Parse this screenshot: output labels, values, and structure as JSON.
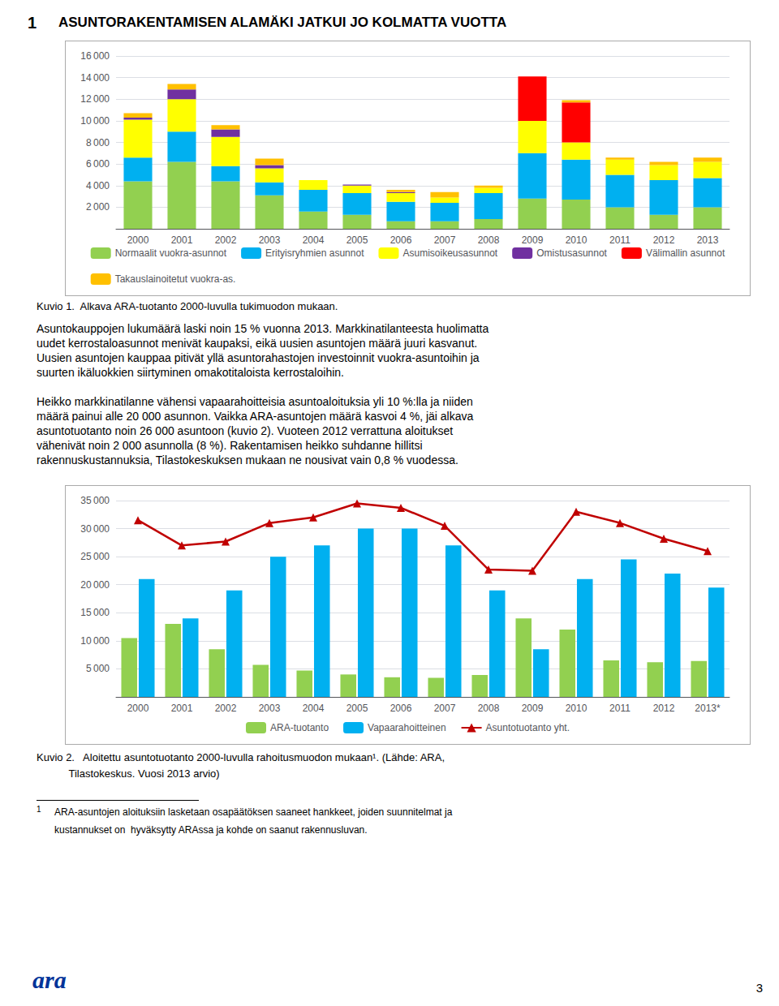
{
  "annotations": [
    "1",
    "ASUNTORAKENTAMISEN ALAMÄKI JATKUI JO KOLMATTA VUOTTA",
    "Kuvio 1.  Alkava ARA-tuotanto 2000-luvulla tukimuodon mukaan.",
    "Asuntokauppojen lukumäärä laski noin 15 % vuonna 2013. Markkinatilanteesta huolimatta",
    "uudet kerrostaloasunnot menivät kaupaksi, eikä uusien asuntojen määrä juuri kasvanut.",
    "Uusien asuntojen kauppaa pitivät yllä asuntorahastojen investoinnit vuokra-asuntoihin ja",
    "suurten ikäluokkien siirtyminen omakotitaloista kerrostaloihin.",
    "Heikko markkinatilanne vähensi vapaarahoitteisia asuntoaloituksia yli 10 %:lla ja niiden",
    "määrä painui alle 20 000 asunnon. Vaikka ARA-asuntojen määrä kasvoi 4 %, jäi alkava",
    "asuntotuotanto noin 26 000 asuntoon (kuvio 2). Vuoteen 2012 verrattuna aloitukset",
    "vähenivät noin 2 000 asunnolla (8 %). Rakentamisen heikko suhdanne hillitsi",
    "rakennuskustannuksia, Tilastokeskuksen mukaan ne nousivat vain 0,8 % vuodessa.",
    "Kuvio 2.   Aloitettu asuntotuotanto 2000-luvulla rahoitusmuodon mukaan¹. (Lähde: ARA,",
    "           Tilastokeskus. Vuosi 2013 arvio)",
    "1",
    "ARA-asuntojen aloituksiin lasketaan osapäätöksen saaneet hankkeet, joiden suunnitelmat ja",
    "kustannukset on  hyväksytty ARAssa ja kohde on saanut rakennusluvan.",
    "3",
    "ara"
  ],
  "chart_data": [
    {
      "type": "bar",
      "stacked": true,
      "categories": [
        "2000",
        "2001",
        "2002",
        "2003",
        "2004",
        "2005",
        "2006",
        "2007",
        "2008",
        "2009",
        "2010",
        "2011",
        "2012",
        "2013"
      ],
      "series": [
        {
          "name": "Normaalit vuokra-asunnot",
          "color": "#92D050",
          "values": [
            4400,
            6200,
            4400,
            3100,
            1600,
            1300,
            700,
            700,
            900,
            2800,
            2700,
            2000,
            1300,
            2000
          ]
        },
        {
          "name": "Erityisryhmien asunnot",
          "color": "#00B0F0",
          "values": [
            2200,
            2800,
            1400,
            1200,
            2000,
            2000,
            1800,
            1700,
            2400,
            4200,
            3700,
            3000,
            3200,
            2700
          ]
        },
        {
          "name": "Asumisoikeusasunnot",
          "color": "#FFFF00",
          "values": [
            3500,
            3000,
            2700,
            1300,
            900,
            700,
            800,
            500,
            500,
            3000,
            1600,
            1400,
            1400,
            1500
          ]
        },
        {
          "name": "Omistusasunnot",
          "color": "#7030A0",
          "values": [
            200,
            900,
            700,
            300,
            0,
            100,
            100,
            0,
            0,
            0,
            0,
            0,
            0,
            0
          ]
        },
        {
          "name": "Välimallin asunnot",
          "color": "#FF0000",
          "values": [
            0,
            0,
            0,
            0,
            0,
            0,
            0,
            0,
            0,
            4100,
            3700,
            0,
            0,
            0
          ]
        },
        {
          "name": "Takauslainoitetut vuokra-as.",
          "color": "#FFC000",
          "values": [
            400,
            500,
            400,
            600,
            0,
            0,
            200,
            500,
            200,
            0,
            200,
            200,
            300,
            400
          ]
        }
      ],
      "ylim": [
        0,
        16000
      ],
      "yticks": [
        {
          "value": 2000,
          "label": "2 000"
        },
        {
          "value": 4000,
          "label": "4 000"
        },
        {
          "value": 6000,
          "label": "6 000"
        },
        {
          "value": 8000,
          "label": "8 000"
        },
        {
          "value": 10000,
          "label": "10 000"
        },
        {
          "value": 12000,
          "label": "12 000"
        },
        {
          "value": 14000,
          "label": "14 000"
        },
        {
          "value": 16000,
          "label": "16 000"
        }
      ],
      "grid": true,
      "legend": "bottom"
    },
    {
      "type": "bar",
      "categories": [
        "2000",
        "2001",
        "2002",
        "2003",
        "2004",
        "2005",
        "2006",
        "2007",
        "2008",
        "2009",
        "2010",
        "2011",
        "2012",
        "2013*"
      ],
      "series": [
        {
          "name": "ARA-tuotanto",
          "type": "bar",
          "color": "#92D050",
          "values": [
            10500,
            13000,
            8500,
            5700,
            4700,
            4000,
            3500,
            3400,
            3900,
            14000,
            12000,
            6500,
            6200,
            6400
          ]
        },
        {
          "name": "Vapaarahoitteinen",
          "type": "bar",
          "color": "#00B0F0",
          "values": [
            21000,
            14000,
            19000,
            25000,
            27000,
            30000,
            30000,
            27000,
            19000,
            8500,
            21000,
            24500,
            22000,
            19500
          ]
        },
        {
          "name": "Asuntotuotanto yht.",
          "type": "line",
          "color": "#C00000",
          "marker": "triangle",
          "values": [
            31500,
            27000,
            27700,
            31000,
            32000,
            34500,
            33700,
            30500,
            22700,
            22500,
            33000,
            31000,
            28200,
            26000
          ]
        }
      ],
      "ylim": [
        0,
        35000
      ],
      "yticks": [
        {
          "value": 5000,
          "label": "5 000"
        },
        {
          "value": 10000,
          "label": "10 000"
        },
        {
          "value": 15000,
          "label": "15 000"
        },
        {
          "value": 20000,
          "label": "20 000"
        },
        {
          "value": 25000,
          "label": "25 000"
        },
        {
          "value": 30000,
          "label": "30 000"
        },
        {
          "value": 35000,
          "label": "35 000"
        }
      ],
      "grid": true,
      "legend": "bottom"
    }
  ]
}
